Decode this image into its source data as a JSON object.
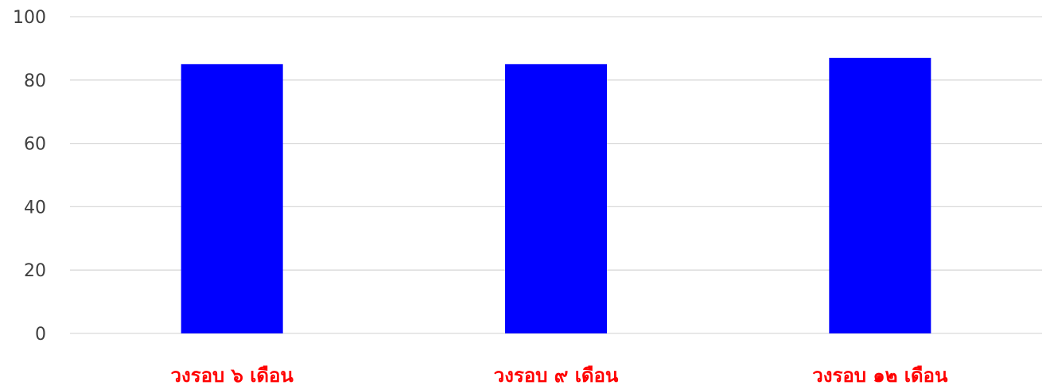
{
  "chart_data": {
    "type": "bar",
    "categories": [
      "วงรอบ ๖ เดือน",
      "วงรอบ ๙ เดือน",
      "วงรอบ ๑๒ เดือน"
    ],
    "values": [
      85,
      85,
      87
    ],
    "title": "",
    "xlabel": "",
    "ylabel": "",
    "ylim": [
      0,
      100
    ],
    "yticks": [
      "0",
      "20",
      "40",
      "60",
      "80",
      "100"
    ],
    "grid": true,
    "legend": "none",
    "bar_color": "#0000ff",
    "category_label_color": "#ff0000"
  }
}
